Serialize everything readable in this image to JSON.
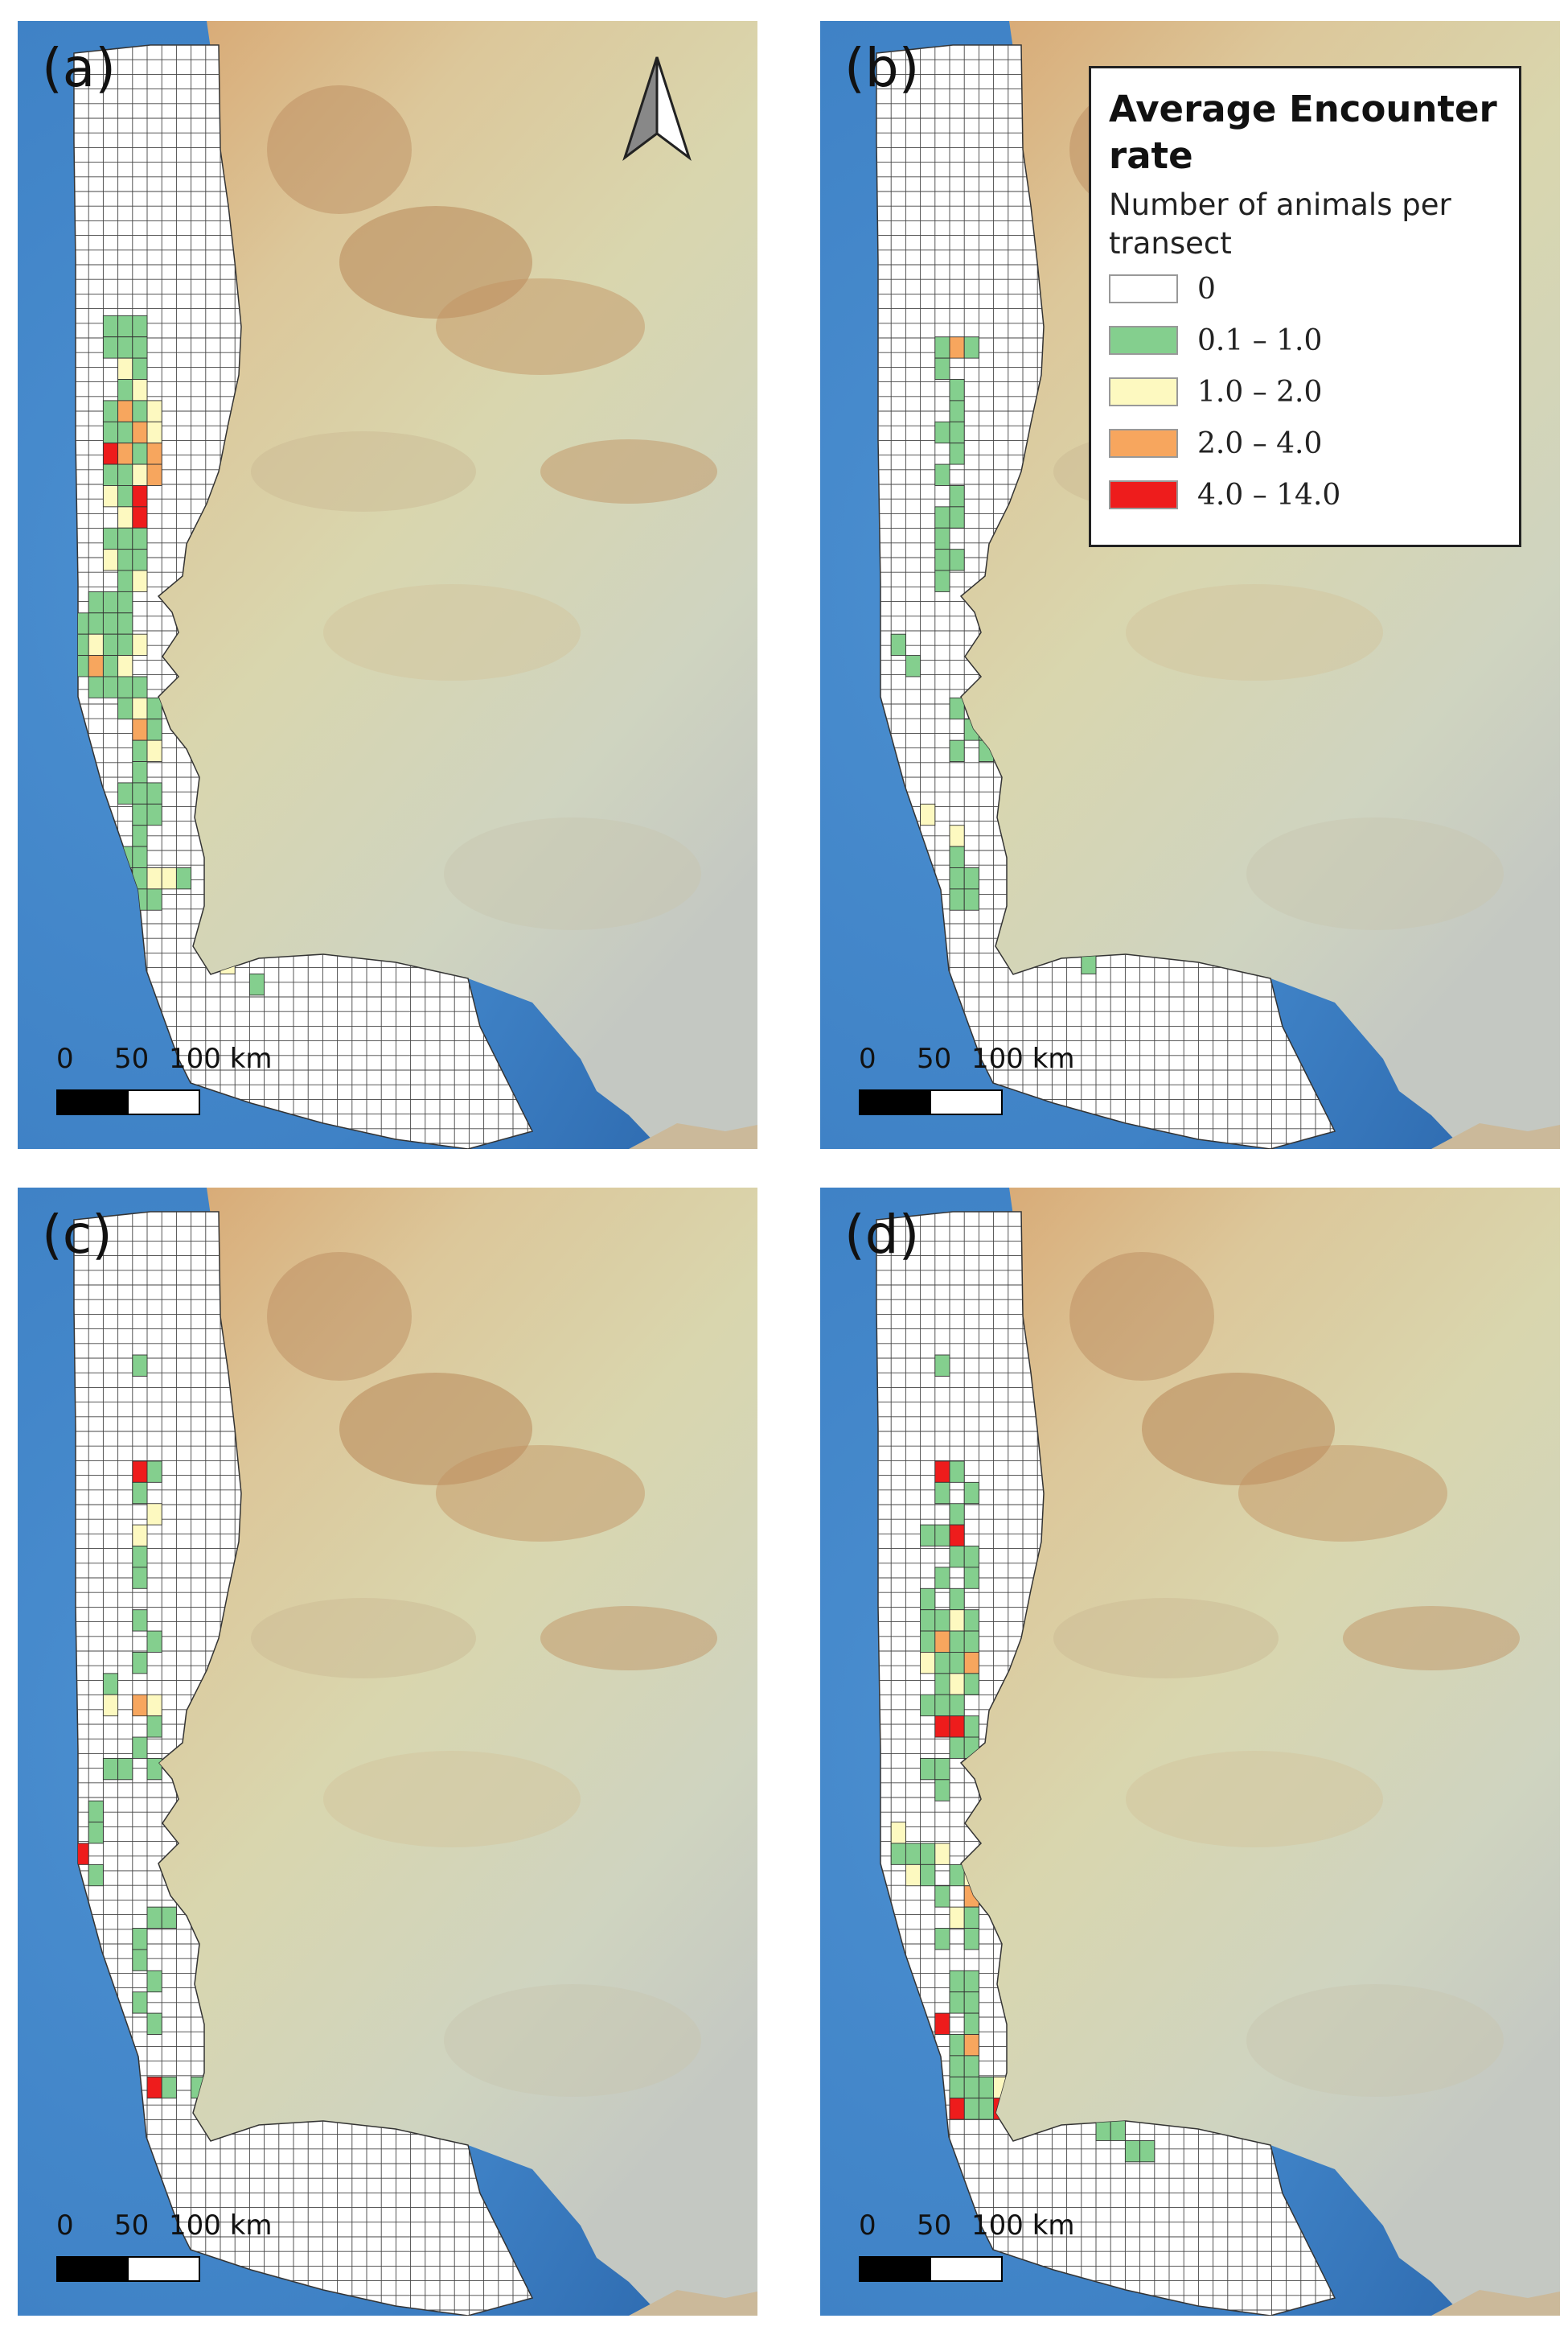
{
  "legend": {
    "title": "Average Encounter rate",
    "subtitle": "Number of animals per transect",
    "classes": [
      {
        "label": "0",
        "color": "#ffffff"
      },
      {
        "label": "0.1 – 1.0",
        "color": "#84cf8e"
      },
      {
        "label": "1.0 – 2.0",
        "color": "#fdf9c0"
      },
      {
        "label": "2.0 – 4.0",
        "color": "#f7a65e"
      },
      {
        "label": "4.0 – 14.0",
        "color": "#ee1c1c"
      }
    ]
  },
  "scale_bar": {
    "ticks": [
      "0",
      "50",
      "100 km"
    ]
  },
  "panels": [
    {
      "label": "(a)",
      "north_arrow": true,
      "cells": [
        [
          2,
          6,
          1
        ],
        [
          3,
          6,
          1
        ],
        [
          4,
          6,
          1
        ],
        [
          2,
          7,
          1
        ],
        [
          3,
          7,
          1
        ],
        [
          4,
          7,
          1
        ],
        [
          3,
          8,
          2
        ],
        [
          4,
          8,
          1
        ],
        [
          3,
          9,
          1
        ],
        [
          4,
          9,
          2
        ],
        [
          2,
          10,
          1
        ],
        [
          3,
          10,
          3
        ],
        [
          4,
          10,
          1
        ],
        [
          5,
          10,
          2
        ],
        [
          2,
          11,
          1
        ],
        [
          3,
          11,
          1
        ],
        [
          4,
          11,
          3
        ],
        [
          5,
          11,
          2
        ],
        [
          2,
          12,
          4
        ],
        [
          3,
          12,
          3
        ],
        [
          4,
          12,
          1
        ],
        [
          5,
          12,
          3
        ],
        [
          2,
          13,
          1
        ],
        [
          3,
          13,
          1
        ],
        [
          4,
          13,
          2
        ],
        [
          5,
          13,
          3
        ],
        [
          2,
          14,
          2
        ],
        [
          3,
          14,
          1
        ],
        [
          4,
          14,
          4
        ],
        [
          3,
          15,
          2
        ],
        [
          4,
          15,
          4
        ],
        [
          2,
          16,
          1
        ],
        [
          3,
          16,
          1
        ],
        [
          4,
          16,
          1
        ],
        [
          2,
          17,
          2
        ],
        [
          3,
          17,
          1
        ],
        [
          4,
          17,
          1
        ],
        [
          3,
          18,
          1
        ],
        [
          4,
          18,
          2
        ],
        [
          1,
          19,
          1
        ],
        [
          2,
          19,
          1
        ],
        [
          3,
          19,
          1
        ],
        [
          0,
          20,
          1
        ],
        [
          1,
          20,
          1
        ],
        [
          2,
          20,
          1
        ],
        [
          3,
          20,
          1
        ],
        [
          0,
          21,
          1
        ],
        [
          1,
          21,
          2
        ],
        [
          2,
          21,
          1
        ],
        [
          3,
          21,
          1
        ],
        [
          4,
          21,
          2
        ],
        [
          0,
          22,
          1
        ],
        [
          1,
          22,
          3
        ],
        [
          2,
          22,
          1
        ],
        [
          3,
          22,
          2
        ],
        [
          1,
          23,
          1
        ],
        [
          2,
          23,
          1
        ],
        [
          3,
          23,
          1
        ],
        [
          4,
          23,
          1
        ],
        [
          3,
          24,
          1
        ],
        [
          4,
          24,
          2
        ],
        [
          5,
          24,
          1
        ],
        [
          4,
          25,
          3
        ],
        [
          5,
          25,
          1
        ],
        [
          4,
          26,
          1
        ],
        [
          5,
          26,
          2
        ],
        [
          4,
          27,
          1
        ],
        [
          3,
          28,
          1
        ],
        [
          4,
          28,
          1
        ],
        [
          5,
          28,
          1
        ],
        [
          4,
          29,
          1
        ],
        [
          5,
          29,
          1
        ],
        [
          4,
          30,
          1
        ],
        [
          3,
          31,
          1
        ],
        [
          4,
          31,
          1
        ],
        [
          4,
          32,
          1
        ],
        [
          5,
          32,
          2
        ],
        [
          6,
          32,
          2
        ],
        [
          7,
          32,
          1
        ],
        [
          4,
          33,
          1
        ],
        [
          5,
          33,
          1
        ],
        [
          9,
          33,
          1
        ],
        [
          12,
          33,
          1
        ],
        [
          14,
          32,
          1
        ],
        [
          14,
          34,
          3
        ],
        [
          10,
          36,
          2
        ],
        [
          12,
          37,
          1
        ]
      ]
    },
    {
      "label": "(b)",
      "north_arrow": false,
      "cells": [
        [
          4,
          7,
          1
        ],
        [
          5,
          7,
          3
        ],
        [
          6,
          7,
          1
        ],
        [
          4,
          8,
          1
        ],
        [
          5,
          9,
          1
        ],
        [
          5,
          10,
          1
        ],
        [
          4,
          11,
          1
        ],
        [
          5,
          11,
          1
        ],
        [
          5,
          12,
          1
        ],
        [
          4,
          13,
          1
        ],
        [
          5,
          14,
          1
        ],
        [
          4,
          15,
          1
        ],
        [
          5,
          15,
          1
        ],
        [
          4,
          16,
          1
        ],
        [
          4,
          17,
          1
        ],
        [
          5,
          17,
          1
        ],
        [
          4,
          18,
          1
        ],
        [
          1,
          21,
          1
        ],
        [
          2,
          22,
          1
        ],
        [
          5,
          24,
          1
        ],
        [
          6,
          25,
          1
        ],
        [
          7,
          25,
          1
        ],
        [
          5,
          26,
          1
        ],
        [
          7,
          26,
          1
        ],
        [
          3,
          29,
          2
        ],
        [
          5,
          30,
          2
        ],
        [
          5,
          31,
          1
        ],
        [
          5,
          32,
          1
        ],
        [
          6,
          32,
          1
        ],
        [
          5,
          33,
          1
        ],
        [
          6,
          33,
          1
        ],
        [
          12,
          33,
          1
        ],
        [
          11,
          34,
          1
        ],
        [
          12,
          35,
          1
        ],
        [
          14,
          36,
          1
        ]
      ]
    },
    {
      "label": "(c)",
      "north_arrow": false,
      "cells": [
        [
          4,
          0,
          1
        ],
        [
          4,
          5,
          4
        ],
        [
          5,
          5,
          1
        ],
        [
          4,
          6,
          1
        ],
        [
          5,
          7,
          2
        ],
        [
          4,
          8,
          2
        ],
        [
          4,
          9,
          1
        ],
        [
          4,
          10,
          1
        ],
        [
          4,
          12,
          1
        ],
        [
          5,
          13,
          1
        ],
        [
          4,
          14,
          1
        ],
        [
          2,
          15,
          1
        ],
        [
          2,
          16,
          2
        ],
        [
          4,
          16,
          3
        ],
        [
          5,
          16,
          2
        ],
        [
          5,
          17,
          1
        ],
        [
          4,
          18,
          1
        ],
        [
          2,
          19,
          1
        ],
        [
          3,
          19,
          1
        ],
        [
          5,
          19,
          1
        ],
        [
          1,
          21,
          1
        ],
        [
          1,
          22,
          1
        ],
        [
          0,
          23,
          4
        ],
        [
          1,
          24,
          1
        ],
        [
          5,
          26,
          1
        ],
        [
          6,
          26,
          1
        ],
        [
          4,
          27,
          1
        ],
        [
          4,
          28,
          1
        ],
        [
          5,
          29,
          1
        ],
        [
          4,
          30,
          1
        ],
        [
          5,
          31,
          1
        ],
        [
          5,
          34,
          4
        ],
        [
          6,
          34,
          1
        ],
        [
          8,
          34,
          1
        ],
        [
          9,
          33,
          1
        ],
        [
          10,
          33,
          3
        ],
        [
          9,
          34,
          2
        ],
        [
          10,
          34,
          2
        ],
        [
          11,
          34,
          1
        ],
        [
          12,
          33,
          3
        ]
      ]
    },
    {
      "label": "(d)",
      "north_arrow": false,
      "cells": [
        [
          4,
          0,
          1
        ],
        [
          4,
          5,
          4
        ],
        [
          5,
          5,
          1
        ],
        [
          4,
          6,
          1
        ],
        [
          6,
          6,
          1
        ],
        [
          5,
          7,
          1
        ],
        [
          3,
          8,
          1
        ],
        [
          4,
          8,
          1
        ],
        [
          5,
          8,
          4
        ],
        [
          5,
          9,
          1
        ],
        [
          6,
          9,
          1
        ],
        [
          4,
          10,
          1
        ],
        [
          6,
          10,
          1
        ],
        [
          3,
          11,
          1
        ],
        [
          5,
          11,
          1
        ],
        [
          3,
          12,
          1
        ],
        [
          4,
          12,
          1
        ],
        [
          5,
          12,
          2
        ],
        [
          6,
          12,
          1
        ],
        [
          3,
          13,
          1
        ],
        [
          4,
          13,
          3
        ],
        [
          5,
          13,
          1
        ],
        [
          6,
          13,
          1
        ],
        [
          3,
          14,
          2
        ],
        [
          4,
          14,
          1
        ],
        [
          5,
          14,
          1
        ],
        [
          6,
          14,
          3
        ],
        [
          4,
          15,
          1
        ],
        [
          5,
          15,
          2
        ],
        [
          6,
          15,
          1
        ],
        [
          3,
          16,
          1
        ],
        [
          4,
          16,
          1
        ],
        [
          5,
          16,
          1
        ],
        [
          4,
          17,
          4
        ],
        [
          5,
          17,
          4
        ],
        [
          6,
          17,
          1
        ],
        [
          5,
          18,
          1
        ],
        [
          6,
          18,
          1
        ],
        [
          3,
          19,
          1
        ],
        [
          4,
          19,
          1
        ],
        [
          4,
          20,
          1
        ],
        [
          1,
          22,
          2
        ],
        [
          1,
          23,
          1
        ],
        [
          2,
          23,
          1
        ],
        [
          3,
          23,
          1
        ],
        [
          4,
          23,
          2
        ],
        [
          2,
          24,
          2
        ],
        [
          3,
          24,
          1
        ],
        [
          5,
          24,
          1
        ],
        [
          6,
          24,
          2
        ],
        [
          4,
          25,
          1
        ],
        [
          6,
          25,
          3
        ],
        [
          5,
          26,
          2
        ],
        [
          6,
          26,
          1
        ],
        [
          4,
          27,
          1
        ],
        [
          6,
          27,
          1
        ],
        [
          5,
          29,
          1
        ],
        [
          6,
          29,
          1
        ],
        [
          5,
          30,
          1
        ],
        [
          6,
          30,
          1
        ],
        [
          4,
          31,
          4
        ],
        [
          6,
          31,
          1
        ],
        [
          5,
          32,
          1
        ],
        [
          6,
          32,
          3
        ],
        [
          5,
          33,
          1
        ],
        [
          6,
          33,
          1
        ],
        [
          7,
          34,
          1
        ],
        [
          5,
          34,
          1
        ],
        [
          6,
          34,
          1
        ],
        [
          8,
          34,
          2
        ],
        [
          9,
          34,
          3
        ],
        [
          9,
          33,
          2
        ],
        [
          10,
          33,
          1
        ],
        [
          11,
          33,
          1
        ],
        [
          12,
          33,
          1
        ],
        [
          6,
          35,
          1
        ],
        [
          7,
          35,
          1
        ],
        [
          8,
          35,
          4
        ],
        [
          5,
          35,
          4
        ],
        [
          14,
          34,
          1
        ],
        [
          14,
          35,
          1
        ],
        [
          15,
          36,
          1
        ],
        [
          16,
          36,
          1
        ],
        [
          17,
          37,
          1
        ],
        [
          18,
          37,
          1
        ]
      ]
    }
  ]
}
